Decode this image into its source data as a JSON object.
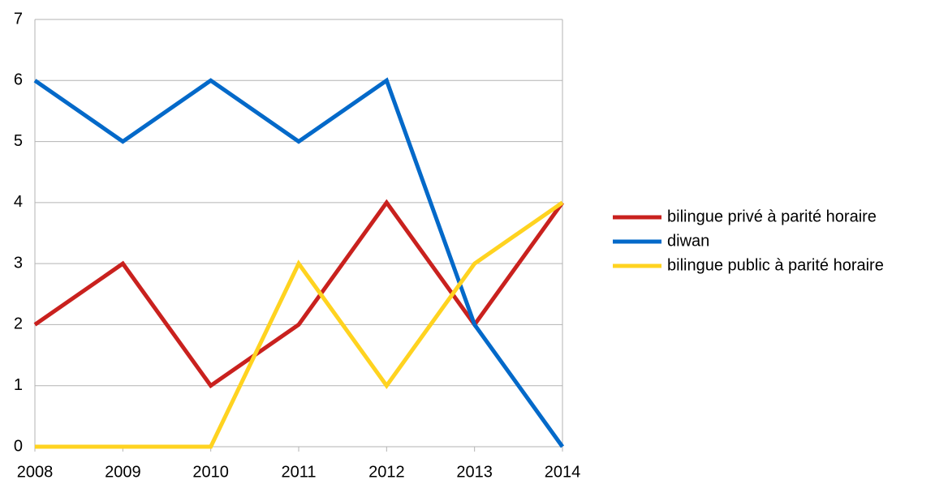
{
  "chart_data": {
    "type": "line",
    "x": [
      2008,
      2009,
      2010,
      2011,
      2012,
      2013,
      2014
    ],
    "xlim": [
      2008,
      2014
    ],
    "xticks": [
      2008,
      2009,
      2010,
      2011,
      2012,
      2013,
      2014
    ],
    "ylim": [
      0,
      7
    ],
    "yticks": [
      0,
      1,
      2,
      3,
      4,
      5,
      6,
      7
    ],
    "grid": true,
    "legend": "right",
    "series": [
      {
        "name": "bilingue privé à parité horaire",
        "color": "#c9211e",
        "values": [
          2,
          3,
          1,
          2,
          4,
          2,
          4
        ]
      },
      {
        "name": "diwan",
        "color": "#0369c9",
        "values": [
          6,
          5,
          6,
          5,
          6,
          2,
          0
        ]
      },
      {
        "name": "bilingue public à parité horaire",
        "color": "#ffd320",
        "values": [
          0,
          0,
          0,
          3,
          1,
          3,
          4
        ]
      }
    ]
  }
}
